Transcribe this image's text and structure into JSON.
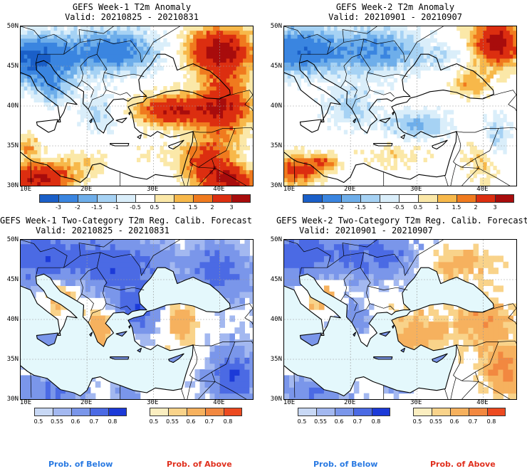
{
  "panels": [
    {
      "title": "GEFS Week-1 T2m Anomaly",
      "valid": "Valid: 20210825 - 20210831",
      "kind": "anomaly",
      "week": 1
    },
    {
      "title": "GEFS Week-2 T2m Anomaly",
      "valid": "Valid: 20210901 - 20210907",
      "kind": "anomaly",
      "week": 2
    },
    {
      "title": "GEFS Week-1 Two-Category T2m Reg. Calib. Forecast",
      "valid": "Valid: 20210825 - 20210831",
      "kind": "prob",
      "week": 1
    },
    {
      "title": "GEFS Week-2 Two-Category T2m Reg. Calib. Forecast",
      "valid": "Valid: 20210901 - 20210907",
      "kind": "prob",
      "week": 2
    }
  ],
  "axes": {
    "lat_labels": [
      "50N",
      "45N",
      "40N",
      "35N",
      "30N"
    ],
    "lon_labels": [
      "10E",
      "20E",
      "30E",
      "40E"
    ]
  },
  "anomaly_colorbar": {
    "labels": [
      "-3",
      "-2",
      "-1.5",
      "-1",
      "-0.5",
      "0.5",
      "1",
      "1.5",
      "2",
      "3"
    ],
    "colors": [
      "#1a5fc8",
      "#3a85e0",
      "#6eaeea",
      "#a6d2f4",
      "#daeefa",
      "#ffffff",
      "#fbe8a8",
      "#f7b84a",
      "#f07a1e",
      "#dc2e10",
      "#a80c0c"
    ]
  },
  "prob_colorbar": {
    "below_labels": [
      "0.5",
      "0.55",
      "0.6",
      "0.7",
      "0.8"
    ],
    "below_colors": [
      "#c8d8f5",
      "#a3b8f0",
      "#7a96ea",
      "#4b6ae4",
      "#1c3ad8"
    ],
    "above_labels": [
      "0.5",
      "0.55",
      "0.6",
      "0.7",
      "0.8"
    ],
    "above_colors": [
      "#fbeec0",
      "#f9d38a",
      "#f6b15e",
      "#f28840",
      "#ec4a20"
    ]
  },
  "legend": {
    "below": "Prob. of Below",
    "above": "Prob. of Above",
    "below_color": "#2a7ae2",
    "above_color": "#e0301e"
  },
  "water_color": "#e4f8fc"
}
